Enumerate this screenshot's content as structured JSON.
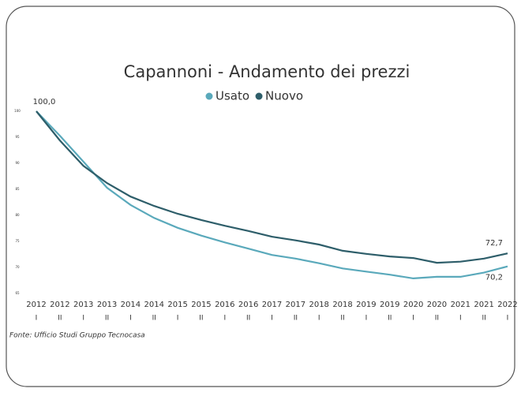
{
  "chart_data": {
    "type": "line",
    "title": "Capannoni - Andamento dei prezzi",
    "source": "Fonte: Ufficio Studi Gruppo Tecnocasa",
    "categories": [
      [
        "2012",
        "I"
      ],
      [
        "2012",
        "II"
      ],
      [
        "2013",
        "I"
      ],
      [
        "2013",
        "II"
      ],
      [
        "2014",
        "I"
      ],
      [
        "2014",
        "II"
      ],
      [
        "2015",
        "I"
      ],
      [
        "2015",
        "II"
      ],
      [
        "2016",
        "I"
      ],
      [
        "2016",
        "II"
      ],
      [
        "2017",
        "I"
      ],
      [
        "2017",
        "II"
      ],
      [
        "2018",
        "I"
      ],
      [
        "2018",
        "II"
      ],
      [
        "2019",
        "I"
      ],
      [
        "2019",
        "II"
      ],
      [
        "2020",
        "I"
      ],
      [
        "2020",
        "II"
      ],
      [
        "2021",
        "I"
      ],
      [
        "2021",
        "II"
      ],
      [
        "2022",
        "I"
      ]
    ],
    "series": [
      {
        "name": "Usato",
        "color": "#5aa9bb",
        "values": [
          100,
          95.3,
          90.3,
          85.3,
          82.0,
          79.5,
          77.6,
          76.1,
          74.8,
          73.6,
          72.4,
          71.7,
          70.8,
          69.8,
          69.2,
          68.6,
          67.9,
          68.2,
          68.2,
          69.0,
          70.2
        ],
        "value_labels": [
          null,
          null,
          null,
          null,
          null,
          null,
          null,
          null,
          null,
          null,
          null,
          null,
          null,
          null,
          null,
          null,
          null,
          null,
          null,
          null,
          "70,2"
        ]
      },
      {
        "name": "Nuovo",
        "color": "#2e5e6a",
        "values": [
          100,
          94.4,
          89.5,
          86.2,
          83.6,
          81.8,
          80.3,
          79.1,
          78.0,
          77.0,
          75.9,
          75.2,
          74.4,
          73.2,
          72.6,
          72.1,
          71.8,
          70.9,
          71.1,
          71.7,
          72.7
        ],
        "value_labels": [
          "100,0",
          null,
          null,
          null,
          null,
          null,
          null,
          null,
          null,
          null,
          null,
          null,
          null,
          null,
          null,
          null,
          null,
          null,
          null,
          null,
          "72,7"
        ]
      }
    ],
    "ylim": [
      65,
      100
    ],
    "yticks": [
      100,
      95,
      90,
      85,
      80,
      75,
      70,
      65
    ],
    "grid": false
  }
}
